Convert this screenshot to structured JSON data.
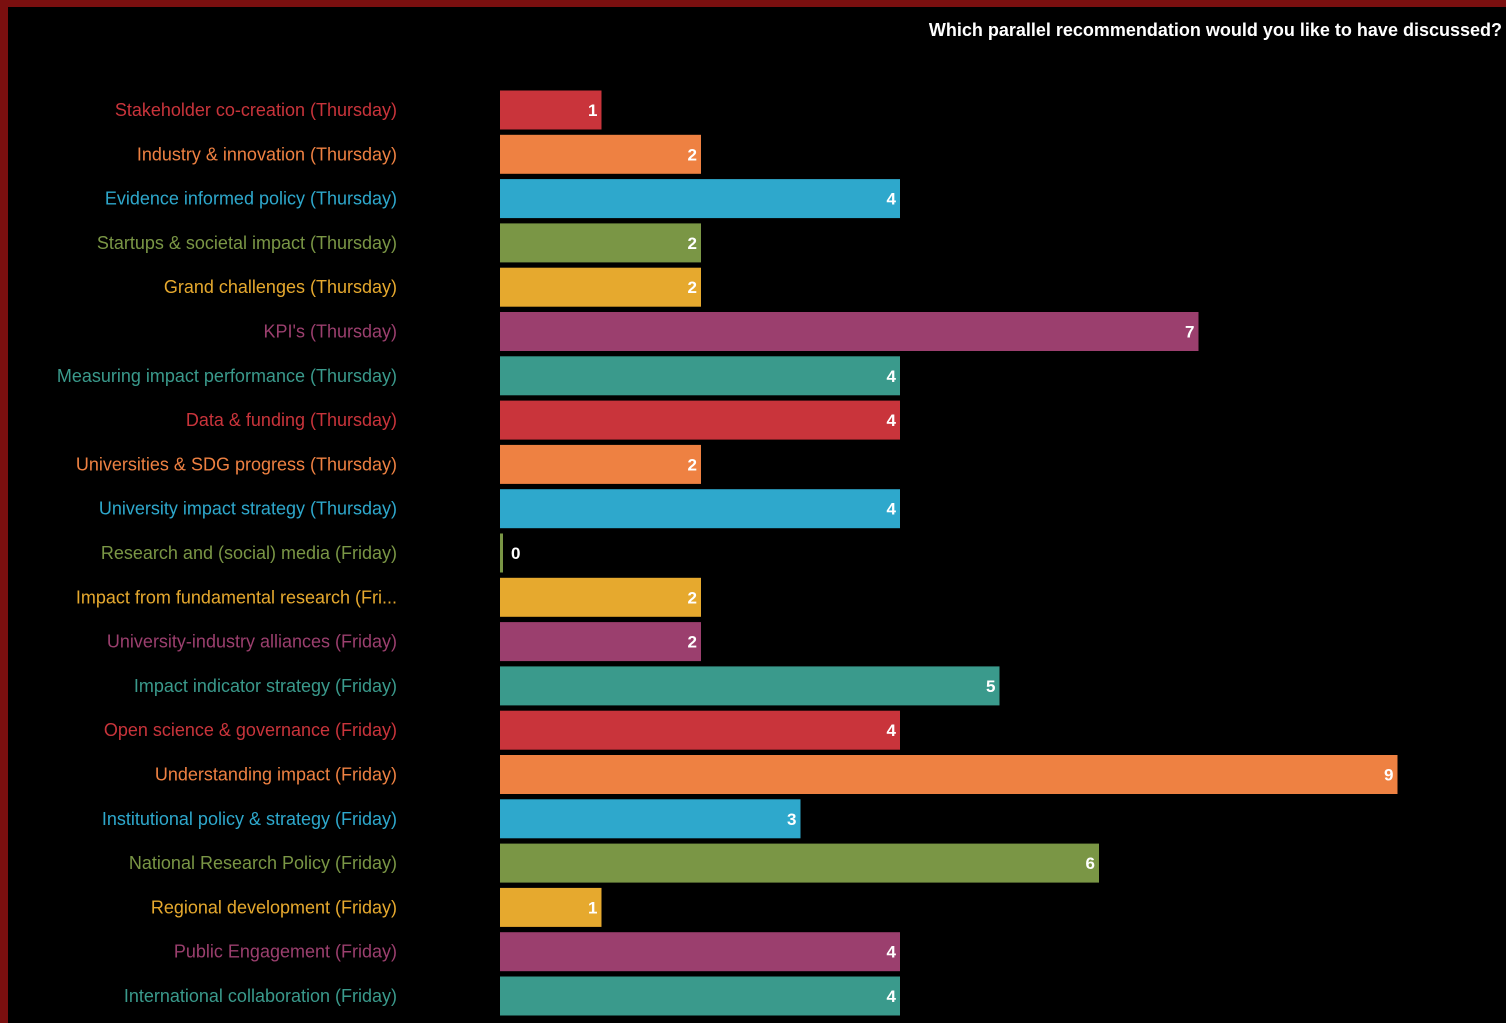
{
  "chart_data": {
    "type": "bar",
    "orientation": "horizontal",
    "title": "Which parallel recommendation would you like to have discussed?",
    "categories": [
      "Stakeholder co-creation (Thursday)",
      "Industry & innovation (Thursday)",
      "Evidence informed policy (Thursday)",
      "Startups & societal impact (Thursday)",
      "Grand challenges (Thursday)",
      "KPI's (Thursday)",
      "Measuring impact performance (Thursday)",
      "Data & funding (Thursday)",
      "Universities & SDG progress (Thursday)",
      "University impact strategy (Thursday)",
      "Research and (social) media (Friday)",
      "Impact from fundamental research (Fri...",
      "University-industry alliances (Friday)",
      "Impact indicator strategy (Friday)",
      "Open science & governance (Friday)",
      "Understanding impact (Friday)",
      "Institutional policy & strategy (Friday)",
      "National Research Policy (Friday)",
      "Regional development (Friday)",
      "Public Engagement (Friday)",
      "International collaboration (Friday)"
    ],
    "values": [
      1,
      2,
      4,
      2,
      2,
      7,
      4,
      4,
      2,
      4,
      0,
      2,
      2,
      5,
      4,
      9,
      3,
      6,
      1,
      4,
      4
    ],
    "colors": [
      "#c9343b",
      "#ee8142",
      "#2ea8cc",
      "#7a9645",
      "#e6a92e",
      "#9b3f6e",
      "#3a9a8c",
      "#c9343b",
      "#ee8142",
      "#2ea8cc",
      "#7a9645",
      "#e6a92e",
      "#9b3f6e",
      "#3a9a8c",
      "#c9343b",
      "#ee8142",
      "#2ea8cc",
      "#7a9645",
      "#e6a92e",
      "#9b3f6e",
      "#3a9a8c"
    ],
    "xlim": [
      0,
      9
    ],
    "grid": false,
    "legend": "none",
    "data_labels": true
  }
}
